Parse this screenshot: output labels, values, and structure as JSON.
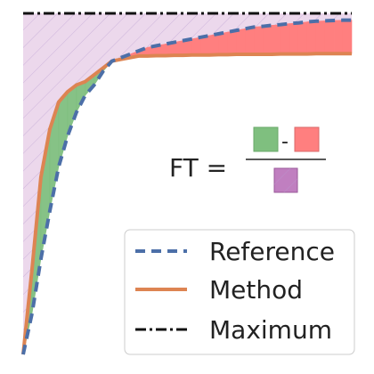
{
  "chart_data": {
    "type": "line",
    "title": "",
    "xlabel": "",
    "ylabel": "",
    "xlim": [
      0,
      37
    ],
    "ylim": [
      0,
      1
    ],
    "grid": false,
    "legend_position": "bottom-right",
    "x": [
      0,
      1,
      2,
      3,
      4,
      5,
      6,
      7,
      8,
      9,
      10,
      11,
      12,
      13,
      14,
      15,
      16,
      17,
      18,
      19,
      20,
      21,
      22,
      23,
      24,
      25,
      26,
      27,
      28,
      29,
      30,
      31,
      32,
      33,
      34,
      35,
      36,
      37
    ],
    "series": [
      {
        "name": "Reference",
        "style": "dashed",
        "color": "#4c6fa8",
        "values": [
          0.0,
          0.12,
          0.28,
          0.42,
          0.55,
          0.64,
          0.71,
          0.76,
          0.79,
          0.83,
          0.86,
          0.87,
          0.88,
          0.89,
          0.9,
          0.905,
          0.91,
          0.915,
          0.92,
          0.925,
          0.93,
          0.935,
          0.94,
          0.945,
          0.95,
          0.955,
          0.96,
          0.962,
          0.965,
          0.967,
          0.97,
          0.972,
          0.975,
          0.977,
          0.978,
          0.979,
          0.98,
          0.98
        ]
      },
      {
        "name": "Method",
        "style": "solid",
        "color": "#dd8452",
        "values": [
          0.0,
          0.25,
          0.52,
          0.66,
          0.74,
          0.77,
          0.79,
          0.8,
          0.82,
          0.84,
          0.86,
          0.865,
          0.87,
          0.875,
          0.875,
          0.876,
          0.876,
          0.877,
          0.877,
          0.878,
          0.878,
          0.878,
          0.879,
          0.879,
          0.88,
          0.88,
          0.88,
          0.88,
          0.88,
          0.881,
          0.881,
          0.881,
          0.881,
          0.882,
          0.882,
          0.882,
          0.882,
          0.882
        ]
      },
      {
        "name": "Maximum",
        "style": "dashdot",
        "color": "#111111",
        "values": [
          1,
          1,
          1,
          1,
          1,
          1,
          1,
          1,
          1,
          1,
          1,
          1,
          1,
          1,
          1,
          1,
          1,
          1,
          1,
          1,
          1,
          1,
          1,
          1,
          1,
          1,
          1,
          1,
          1,
          1,
          1,
          1,
          1,
          1,
          1,
          1,
          1,
          1
        ]
      }
    ],
    "fills": {
      "positive_color": "#7fbf7f",
      "negative_color": "#ff7f7f",
      "max_region_color": "#c07fc0"
    },
    "annotation": {
      "lhs": "FT =",
      "minus": "-"
    }
  }
}
